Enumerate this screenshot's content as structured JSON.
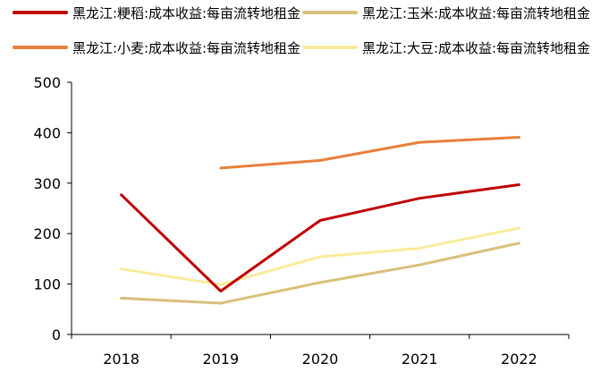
{
  "chart_data": {
    "type": "line",
    "title": "",
    "xlabel": "",
    "ylabel": "",
    "categories": [
      "2018",
      "2019",
      "2020",
      "2021",
      "2022"
    ],
    "ylim": [
      0,
      500
    ],
    "yticks": [
      0,
      100,
      200,
      300,
      400,
      500
    ],
    "grid": false,
    "legend_position": "top",
    "series": [
      {
        "name": "黑龙江:粳稻:成本收益:每亩流转地租金",
        "color": "#C00000",
        "values": [
          277,
          86,
          226,
          270,
          297
        ]
      },
      {
        "name": "黑龙江:玉米:成本收益:每亩流转地租金",
        "color": "#D9C07A",
        "values": [
          72,
          62,
          103,
          138,
          181
        ]
      },
      {
        "name": "黑龙江:小麦:成本收益:每亩流转地租金",
        "color": "#E8803A",
        "values": [
          null,
          330,
          345,
          381,
          391
        ]
      },
      {
        "name": "黑龙江:大豆:成本收益:每亩流转地租金",
        "color": "#F8EB9A",
        "values": [
          130,
          99,
          154,
          171,
          211
        ]
      }
    ]
  }
}
